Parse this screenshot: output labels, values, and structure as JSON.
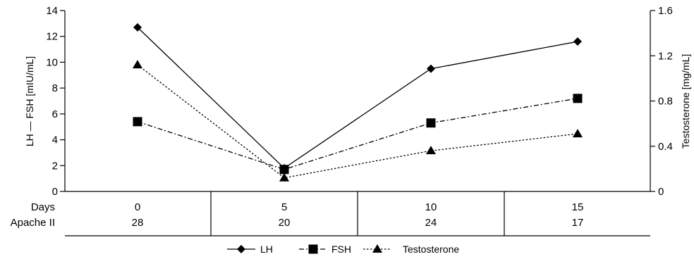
{
  "chart_data": {
    "type": "line",
    "x": [
      0,
      5,
      10,
      15
    ],
    "x_tick_labels": [
      "0",
      "5",
      "10",
      "15"
    ],
    "row_labels": [
      "Days",
      "Apache II"
    ],
    "apache_ii": [
      "28",
      "20",
      "24",
      "17"
    ],
    "left_axis": {
      "label": "LH — FSH [mIU/mL]",
      "ylim": [
        0,
        14
      ],
      "ticks": [
        "0",
        "2",
        "4",
        "6",
        "8",
        "10",
        "12",
        "14"
      ]
    },
    "right_axis": {
      "label": "Testosterone [mg/mL]",
      "ylim": [
        0,
        1.6
      ],
      "ticks": [
        "0",
        "0.4",
        "0.8",
        "1.2",
        "1.6"
      ]
    },
    "series": [
      {
        "name": "LH",
        "axis": "left",
        "values": [
          12.7,
          1.8,
          9.5,
          11.6
        ],
        "marker": "diamond",
        "dash": "solid"
      },
      {
        "name": "FSH",
        "axis": "left",
        "values": [
          5.4,
          1.7,
          5.3,
          7.2
        ],
        "marker": "square",
        "dash": "dashdot"
      },
      {
        "name": "Testosterone",
        "axis": "right",
        "values": [
          1.12,
          0.12,
          0.36,
          0.51
        ],
        "marker": "triangle",
        "dash": "dotted"
      }
    ],
    "legend_position": "bottom-center",
    "grid": false,
    "color": "#000000"
  }
}
